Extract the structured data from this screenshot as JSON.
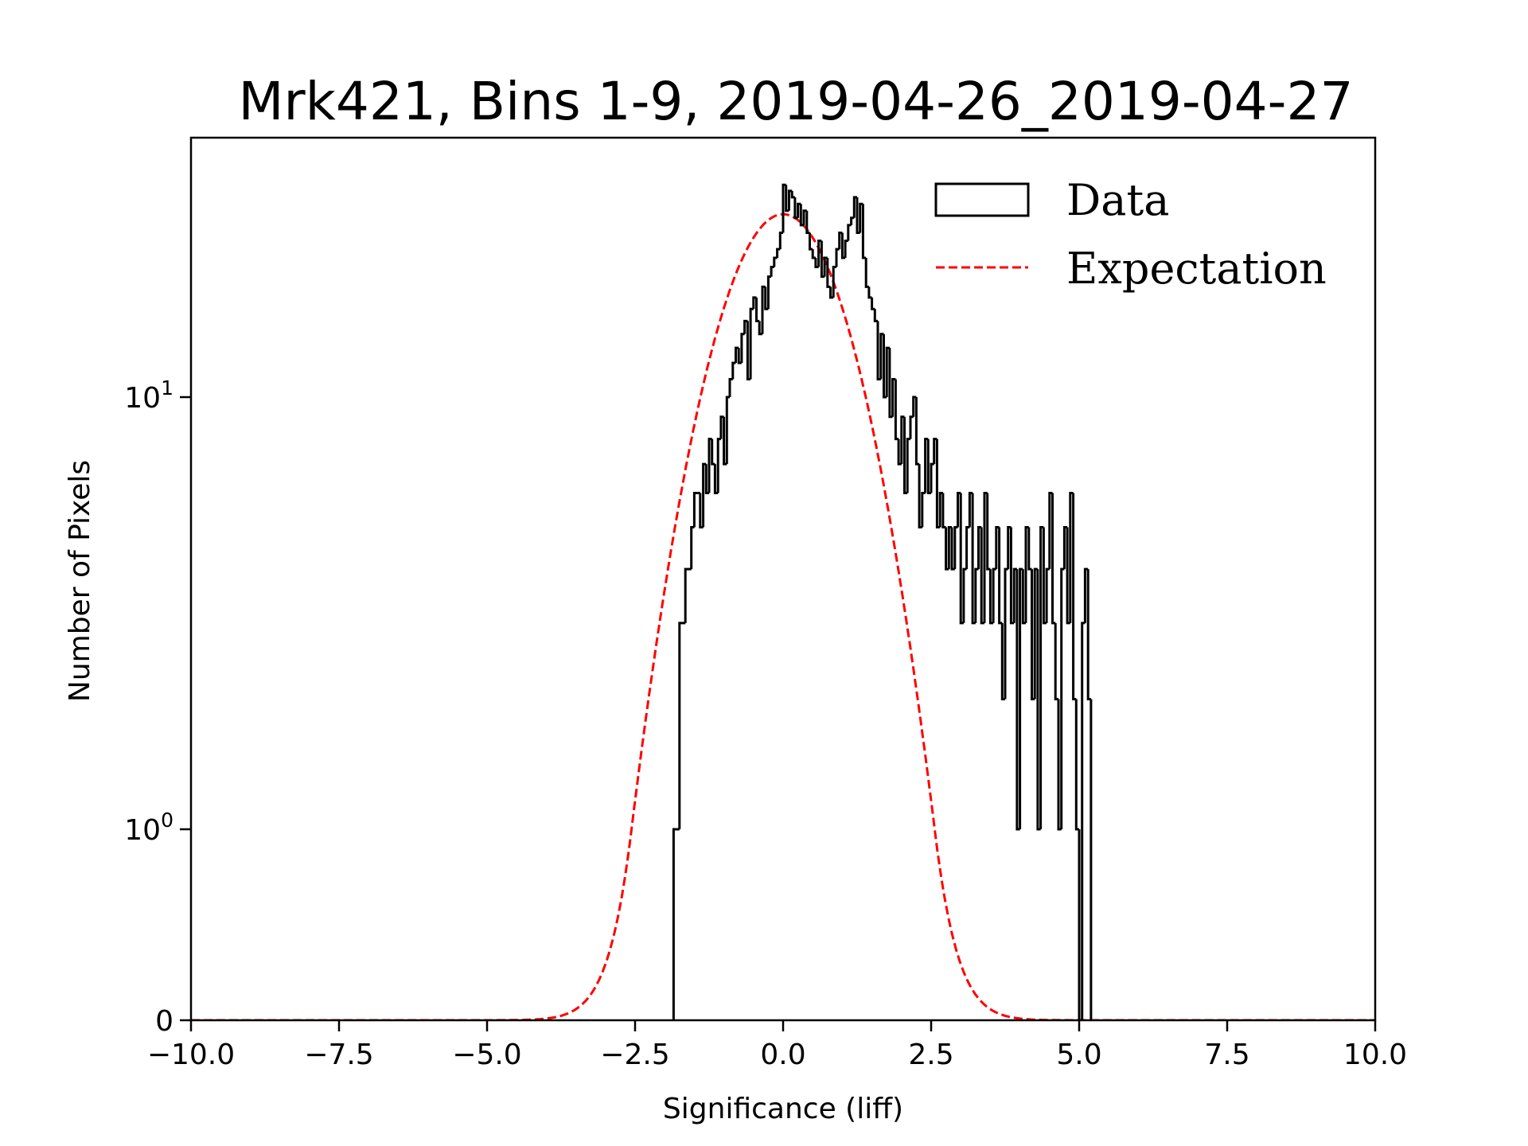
{
  "chart_data": {
    "type": "bar",
    "title": "Mrk421, Bins 1-9, 2019-04-26_2019-04-27",
    "xlabel": "Significance (liff)",
    "ylabel": "Number of Pixels",
    "xlim": [
      -10,
      10
    ],
    "yscale": "symlog",
    "ylim": [
      0,
      40
    ],
    "x_ticks": [
      -10,
      -7.5,
      -5,
      -2.5,
      0,
      2.5,
      5,
      7.5,
      10
    ],
    "x_tick_labels": [
      "−10.0",
      "−7.5",
      "−5.0",
      "−2.5",
      "0.0",
      "2.5",
      "5.0",
      "7.5",
      "10.0"
    ],
    "y_ticks": [
      {
        "value": 0,
        "base": "0",
        "exp": ""
      },
      {
        "value": 1,
        "base": "10",
        "exp": "0"
      },
      {
        "value": 10,
        "base": "10",
        "exp": "1"
      }
    ],
    "grid": false,
    "legend": {
      "placement": "top-right",
      "entries": [
        {
          "label": "Data",
          "style": "step-histogram",
          "color": "#000000"
        },
        {
          "label": "Expectation",
          "style": "dashed-line",
          "color": "#ff0000"
        }
      ]
    },
    "series": [
      {
        "name": "Data",
        "kind": "histogram",
        "color": "#000000",
        "bin_start": -1.85,
        "bin_width": 0.05,
        "counts": [
          1,
          1,
          3,
          3,
          4,
          4,
          5,
          6,
          6,
          5,
          7,
          6,
          8,
          7,
          6,
          8,
          9,
          7,
          10,
          11,
          12,
          13,
          12,
          14,
          15,
          11,
          16,
          17,
          15,
          14,
          18,
          16,
          19,
          20,
          21,
          22,
          24,
          31,
          27,
          30,
          29,
          26,
          28,
          25,
          27,
          24,
          22,
          21,
          20,
          23,
          19,
          21,
          18,
          17,
          20,
          22,
          24,
          21,
          23,
          25,
          26,
          29,
          24,
          28,
          21,
          18,
          17,
          16,
          15,
          11,
          14,
          10,
          13,
          9,
          11,
          8,
          7,
          9,
          6,
          8,
          9,
          10,
          7,
          5,
          6,
          8,
          6,
          7,
          8,
          5,
          6,
          5,
          4,
          5,
          4,
          5,
          6,
          3,
          4,
          5,
          6,
          3,
          4,
          5,
          3,
          6,
          4,
          3,
          4,
          5,
          3,
          2,
          4,
          5,
          3,
          4,
          1,
          4,
          3,
          5,
          4,
          2,
          4,
          1,
          5,
          3,
          4,
          6,
          3,
          2,
          1,
          4,
          5,
          3,
          6,
          2,
          1,
          0,
          3,
          4,
          2
        ],
        "note": "approximate counts read from step histogram"
      },
      {
        "name": "Expectation",
        "kind": "gaussian",
        "color": "#ff0000",
        "mean": 0.0,
        "sigma": 1.0,
        "peak": 26.5
      }
    ]
  }
}
